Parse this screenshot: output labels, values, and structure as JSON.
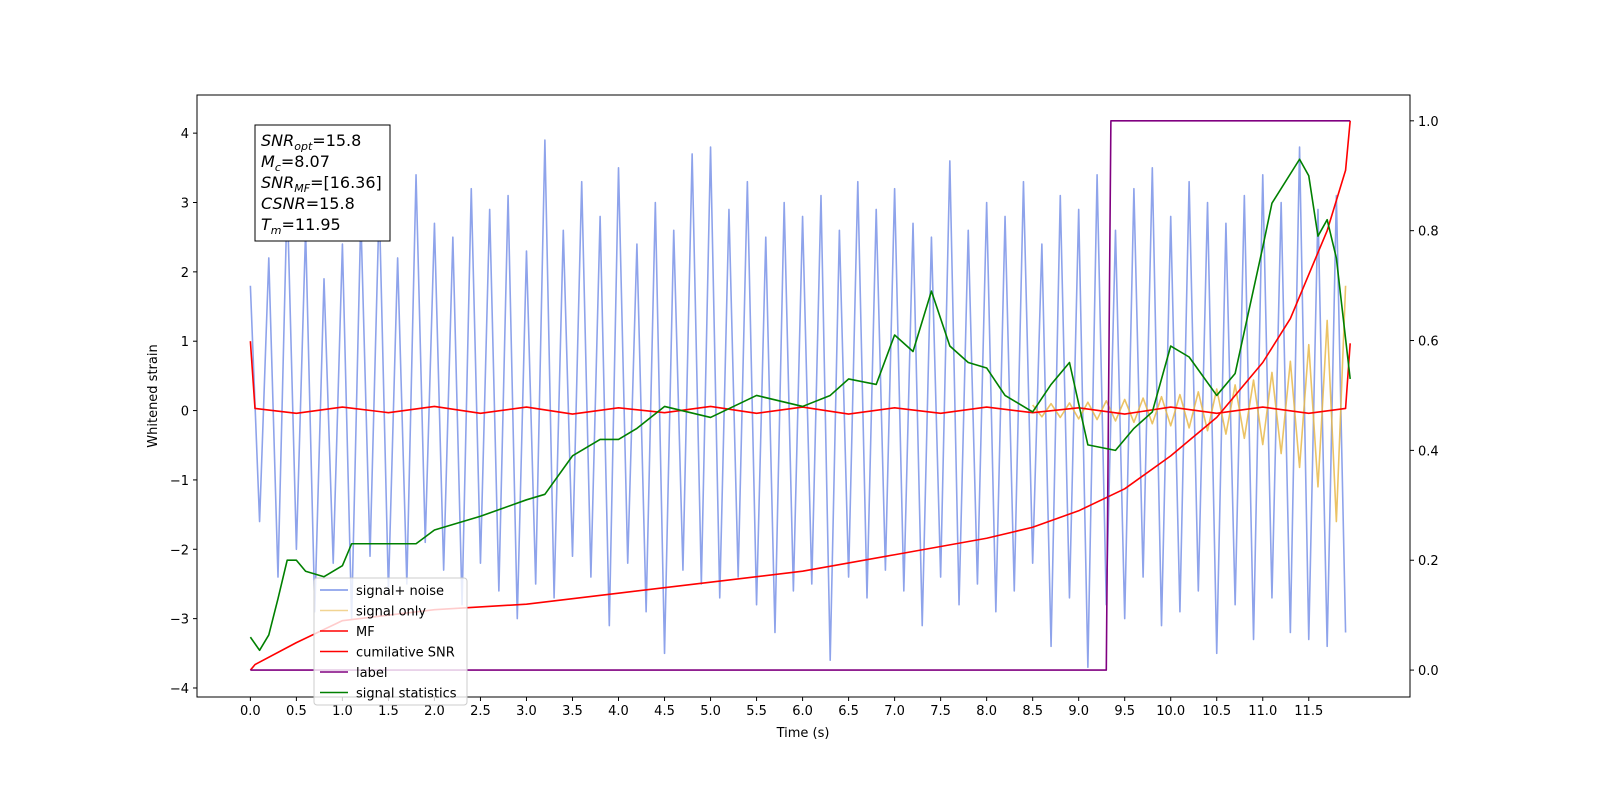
{
  "chart_data": {
    "type": "line",
    "xlabel": "Time (s)",
    "ylabel": "Whitened strain",
    "xlim": [
      -0.58,
      12.6
    ],
    "ylim": [
      -4.13,
      4.55
    ],
    "y2lim": [
      -0.049,
      1.047
    ],
    "xticks": [
      {
        "value": 0,
        "label": "0.0"
      },
      0.5,
      {
        "value": 1,
        "label": "1.0"
      },
      1.5,
      {
        "value": 2,
        "label": "2.0"
      },
      2.5,
      {
        "value": 3,
        "label": "3.0"
      },
      3.5,
      {
        "value": 4,
        "label": "4.0"
      },
      4.5,
      {
        "value": 5,
        "label": "5.0"
      },
      5.5,
      {
        "value": 6,
        "label": "6.0"
      },
      6.5,
      {
        "value": 7,
        "label": "7.0"
      },
      7.5,
      {
        "value": 8,
        "label": "8.0"
      },
      8.5,
      {
        "value": 9,
        "label": "9.0"
      },
      9.5,
      {
        "value": 10,
        "label": "10.0"
      },
      10.5,
      {
        "value": 11,
        "label": "11.0"
      },
      11.5
    ],
    "yticks": [
      {
        "value": -4,
        "label": "−4"
      },
      {
        "value": -3,
        "label": "−3"
      },
      {
        "value": -2,
        "label": "−2"
      },
      {
        "value": -1,
        "label": "−1"
      },
      0,
      1,
      2,
      3,
      4
    ],
    "y2ticks": [
      {
        "value": 0,
        "label": "0.0"
      },
      0.2,
      0.4,
      0.6,
      0.8,
      {
        "value": 1,
        "label": "1.0"
      }
    ],
    "legend": "lower left",
    "stats_box": [
      {
        "symbol": "SNR",
        "sub": "opt",
        "text": "=15.8"
      },
      {
        "symbol": "M",
        "sub": "c",
        "text": "=8.07"
      },
      {
        "symbol": "SNR",
        "sub": "MF",
        "text": "=[16.36]"
      },
      {
        "symbol": "CSNR",
        "text": "=15.8"
      },
      {
        "symbol": "T",
        "sub": "m",
        "text": "=11.95"
      }
    ],
    "series": [
      {
        "name": "signal+ noise",
        "color": "#7a93e8",
        "axis": "y",
        "x": [
          0,
          0.1,
          0.2,
          0.3,
          0.4,
          0.5,
          0.6,
          0.7,
          0.8,
          0.9,
          1,
          1.1,
          1.2,
          1.3,
          1.4,
          1.5,
          1.6,
          1.7,
          1.8,
          1.9,
          2,
          2.1,
          2.2,
          2.3,
          2.4,
          2.5,
          2.6,
          2.7,
          2.8,
          2.9,
          3,
          3.1,
          3.2,
          3.3,
          3.4,
          3.5,
          3.6,
          3.7,
          3.8,
          3.9,
          4,
          4.1,
          4.2,
          4.3,
          4.4,
          4.5,
          4.6,
          4.7,
          4.8,
          4.9,
          5,
          5.1,
          5.2,
          5.3,
          5.4,
          5.5,
          5.6,
          5.7,
          5.8,
          5.9,
          6,
          6.1,
          6.2,
          6.3,
          6.4,
          6.5,
          6.6,
          6.7,
          6.8,
          6.9,
          7,
          7.1,
          7.2,
          7.3,
          7.4,
          7.5,
          7.6,
          7.7,
          7.8,
          7.9,
          8,
          8.1,
          8.2,
          8.3,
          8.4,
          8.5,
          8.6,
          8.7,
          8.8,
          8.9,
          9,
          9.1,
          9.2,
          9.3,
          9.4,
          9.5,
          9.6,
          9.7,
          9.8,
          9.9,
          10,
          10.1,
          10.2,
          10.3,
          10.4,
          10.5,
          10.6,
          10.7,
          10.8,
          10.9,
          11,
          11.1,
          11.2,
          11.3,
          11.4,
          11.5,
          11.6,
          11.7,
          11.8,
          11.9
        ],
        "values": [
          1.8,
          -1.6,
          2.2,
          -2.4,
          3.1,
          -2.0,
          2.6,
          -2.9,
          1.9,
          -2.2,
          2.4,
          -3.0,
          2.8,
          -2.1,
          3.0,
          -2.6,
          2.2,
          -2.5,
          3.4,
          -1.9,
          2.7,
          -2.3,
          2.5,
          -2.8,
          3.2,
          -2.2,
          2.9,
          -2.6,
          3.1,
          -3.0,
          2.3,
          -2.5,
          3.9,
          -2.7,
          2.6,
          -2.1,
          3.3,
          -2.4,
          2.8,
          -3.1,
          3.5,
          -2.2,
          2.4,
          -2.9,
          3.0,
          -3.5,
          2.6,
          -2.3,
          3.7,
          -2.5,
          3.8,
          -2.7,
          2.9,
          -2.4,
          3.3,
          -2.8,
          2.5,
          -3.2,
          3.0,
          -2.6,
          2.8,
          -2.5,
          3.1,
          -3.6,
          2.6,
          -2.4,
          3.3,
          -2.7,
          2.9,
          -2.3,
          3.2,
          -2.6,
          2.7,
          -3.1,
          2.5,
          -2.4,
          3.6,
          -2.8,
          2.6,
          -2.5,
          3.0,
          -2.9,
          2.8,
          -2.6,
          3.3,
          -2.2,
          2.4,
          -3.4,
          3.1,
          -2.7,
          2.9,
          -3.7,
          3.4,
          -2.8,
          2.6,
          -3.0,
          3.2,
          -2.4,
          3.5,
          -3.1,
          2.8,
          -2.9,
          3.3,
          -2.6,
          3.0,
          -3.5,
          2.7,
          -2.8,
          3.1,
          -3.3,
          3.4,
          -2.7,
          3.0,
          -3.2,
          3.8,
          -3.3,
          2.9,
          -3.4,
          3.1,
          -3.2
        ]
      },
      {
        "name": "signal only",
        "color": "#e8b84a",
        "axis": "y",
        "x": [
          8.5,
          8.6,
          8.7,
          8.8,
          8.9,
          9,
          9.1,
          9.2,
          9.3,
          9.4,
          9.5,
          9.6,
          9.7,
          9.8,
          9.9,
          10,
          10.1,
          10.2,
          10.3,
          10.4,
          10.5,
          10.6,
          10.7,
          10.8,
          10.9,
          11,
          11.1,
          11.2,
          11.3,
          11.4,
          11.5,
          11.6,
          11.7,
          11.8,
          11.9
        ],
        "values": [
          0.08,
          -0.09,
          0.1,
          -0.1,
          0.11,
          -0.12,
          0.12,
          -0.13,
          0.14,
          -0.15,
          0.16,
          -0.17,
          0.18,
          -0.19,
          0.2,
          -0.22,
          0.23,
          -0.25,
          0.27,
          -0.29,
          0.31,
          -0.34,
          0.37,
          -0.4,
          0.44,
          -0.49,
          0.55,
          -0.62,
          0.71,
          -0.82,
          0.95,
          -1.1,
          1.3,
          -1.6,
          1.8
        ]
      },
      {
        "name": "MF",
        "color": "#ff0000",
        "axis": "y",
        "x": [
          0,
          0.05,
          0.5,
          1,
          1.5,
          2,
          2.5,
          3,
          3.5,
          4,
          4.5,
          5,
          5.5,
          6,
          6.5,
          7,
          7.5,
          8,
          8.5,
          9,
          9.5,
          10,
          10.5,
          11,
          11.5,
          11.9,
          11.95
        ],
        "values": [
          1.0,
          0.03,
          -0.04,
          0.05,
          -0.03,
          0.06,
          -0.04,
          0.05,
          -0.05,
          0.04,
          -0.03,
          0.06,
          -0.04,
          0.05,
          -0.05,
          0.04,
          -0.04,
          0.05,
          -0.03,
          0.04,
          -0.05,
          0.05,
          -0.04,
          0.05,
          -0.04,
          0.03,
          0.97
        ]
      },
      {
        "name": "cumilative SNR",
        "color": "#ff0000",
        "axis": "y2",
        "x": [
          0,
          0.05,
          0.5,
          1,
          2,
          3,
          4,
          5,
          6,
          7,
          8,
          8.5,
          9,
          9.5,
          10,
          10.5,
          11,
          11.3,
          11.5,
          11.7,
          11.9,
          11.95
        ],
        "values": [
          0,
          0.01,
          0.05,
          0.09,
          0.11,
          0.12,
          0.14,
          0.16,
          0.18,
          0.21,
          0.24,
          0.26,
          0.29,
          0.33,
          0.39,
          0.46,
          0.56,
          0.64,
          0.72,
          0.8,
          0.91,
          1.0
        ]
      },
      {
        "name": "label",
        "color": "#800080",
        "axis": "y2",
        "x": [
          0,
          9.3,
          9.35,
          11.95
        ],
        "values": [
          0,
          0,
          1,
          1
        ]
      },
      {
        "name": "signal statistics",
        "color": "#008000",
        "axis": "y2",
        "x": [
          0,
          0.1,
          0.2,
          0.3,
          0.4,
          0.5,
          0.6,
          0.8,
          1,
          1.1,
          1.5,
          1.8,
          2,
          2.5,
          3,
          3.2,
          3.5,
          3.8,
          4,
          4.2,
          4.5,
          5,
          5.5,
          6,
          6.3,
          6.5,
          6.8,
          7,
          7.2,
          7.4,
          7.6,
          7.8,
          8,
          8.2,
          8.5,
          8.7,
          8.9,
          9.1,
          9.4,
          9.6,
          9.8,
          10,
          10.2,
          10.5,
          10.7,
          11,
          11.1,
          11.4,
          11.5,
          11.6,
          11.7,
          11.8,
          11.95
        ],
        "values": [
          0.06,
          0.036,
          0.064,
          0.13,
          0.2,
          0.2,
          0.18,
          0.17,
          0.19,
          0.23,
          0.23,
          0.23,
          0.255,
          0.28,
          0.31,
          0.32,
          0.39,
          0.42,
          0.42,
          0.44,
          0.48,
          0.46,
          0.5,
          0.48,
          0.5,
          0.53,
          0.52,
          0.61,
          0.58,
          0.69,
          0.59,
          0.56,
          0.55,
          0.5,
          0.47,
          0.52,
          0.56,
          0.41,
          0.4,
          0.44,
          0.47,
          0.59,
          0.57,
          0.5,
          0.54,
          0.77,
          0.85,
          0.93,
          0.9,
          0.79,
          0.82,
          0.75,
          0.53
        ]
      }
    ]
  }
}
